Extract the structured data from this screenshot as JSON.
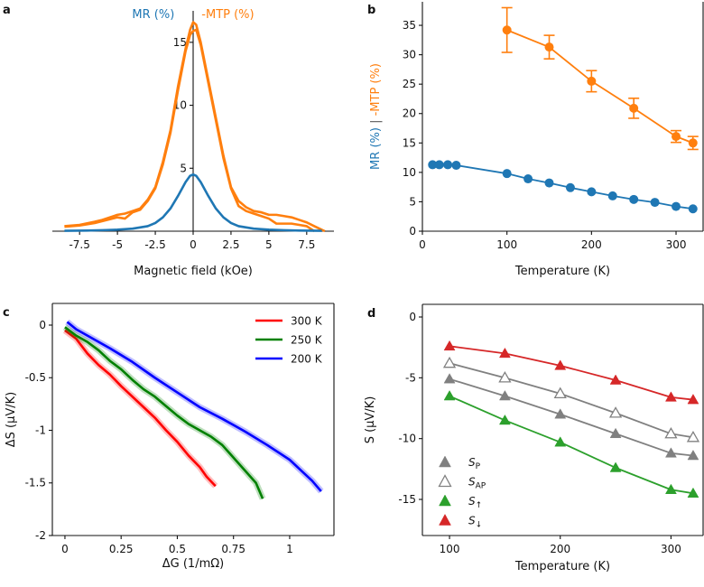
{
  "chart_data": [
    {
      "panel": "a",
      "type": "line",
      "xlabel": "Magnetic field (kOe)",
      "ylabel_parts": [
        {
          "text": "MR (%)",
          "color": "#1f77b4"
        },
        {
          "text": "-MTP (%)",
          "color": "#ff7f0e"
        }
      ],
      "xlim": [
        -9.3,
        9.3
      ],
      "ylim": [
        0,
        17.5
      ],
      "xticks": [
        "-7.5",
        "-5",
        "-2.5",
        "0",
        "2.5",
        "5",
        "7.5"
      ],
      "yticks": [
        "5",
        "10",
        "15"
      ],
      "grid": false,
      "series": [
        {
          "color": "#ff7f0e",
          "x": [
            -8.5,
            -7.5,
            -6.5,
            -6,
            -5,
            -4.5,
            -4,
            -3.5,
            -3,
            -2.5,
            -2,
            -1.5,
            -1,
            -0.5,
            -0.2,
            0,
            0.2,
            0.5,
            1,
            1.5,
            2,
            2.5,
            3,
            3.5,
            4,
            4.5,
            5,
            5.5,
            6,
            6.5,
            7,
            7.5,
            8,
            8.7
          ],
          "y": [
            0.4,
            0.5,
            0.75,
            0.9,
            1.3,
            1.4,
            1.6,
            1.8,
            2.5,
            3.5,
            5.5,
            8,
            11.5,
            14.5,
            16,
            16.6,
            16.4,
            15,
            12,
            9,
            6,
            3.5,
            2.4,
            1.9,
            1.6,
            1.5,
            1.3,
            1.3,
            1.2,
            1.1,
            0.9,
            0.7,
            0.4,
            0
          ]
        },
        {
          "color": "#ff7f0e",
          "x": [
            -8.5,
            -7.5,
            -6.5,
            -6,
            -5,
            -4.5,
            -4,
            -3.5,
            -3,
            -2.5,
            -2,
            -1.5,
            -1,
            -0.5,
            -0.2,
            0,
            0.2,
            0.5,
            1,
            1.5,
            2,
            2.5,
            3,
            3.5,
            4,
            4.5,
            5,
            5.5,
            6,
            6.5,
            7,
            7.5,
            8
          ],
          "y": [
            0.35,
            0.45,
            0.65,
            0.8,
            1.1,
            1.0,
            1.5,
            1.7,
            2.4,
            3.4,
            5.3,
            7.8,
            11.2,
            14.3,
            15.6,
            15.9,
            16.0,
            14.8,
            11.8,
            8.8,
            5.8,
            3.4,
            2.0,
            1.6,
            1.4,
            1.2,
            1.0,
            0.6,
            0.6,
            0.6,
            0.5,
            0.4,
            0
          ]
        },
        {
          "color": "#1f77b4",
          "x": [
            -8.5,
            -7,
            -6,
            -5,
            -4,
            -3,
            -2.5,
            -2,
            -1.5,
            -1,
            -0.5,
            -0.2,
            0,
            0.2,
            0.5,
            1,
            1.5,
            2,
            2.5,
            3,
            4,
            5,
            6,
            7,
            8.5
          ],
          "y": [
            0.03,
            0.05,
            0.08,
            0.12,
            0.2,
            0.4,
            0.65,
            1.1,
            1.8,
            2.8,
            3.9,
            4.4,
            4.5,
            4.4,
            3.9,
            2.8,
            1.8,
            1.1,
            0.65,
            0.4,
            0.2,
            0.12,
            0.08,
            0.05,
            0.03
          ]
        }
      ]
    },
    {
      "panel": "b",
      "type": "line",
      "xlabel": "Temperature (K)",
      "ylabel_parts": [
        {
          "text": "MR (%)",
          "color": "#1f77b4"
        },
        {
          "text": " | ",
          "color": "#555555"
        },
        {
          "text": "-MTP (%)",
          "color": "#ff7f0e"
        }
      ],
      "xlim": [
        0,
        332
      ],
      "ylim": [
        0,
        39
      ],
      "xticks": [
        "0",
        "100",
        "200",
        "300"
      ],
      "yticks": [
        "0",
        "5",
        "10",
        "15",
        "20",
        "25",
        "30",
        "35"
      ],
      "grid": false,
      "series": [
        {
          "color": "#1f77b4",
          "marker": "circle",
          "x": [
            12,
            20,
            30,
            40,
            100,
            125,
            150,
            175,
            200,
            225,
            250,
            275,
            300,
            320
          ],
          "y": [
            11.3,
            11.3,
            11.3,
            11.2,
            9.8,
            8.9,
            8.2,
            7.4,
            6.7,
            6.0,
            5.4,
            4.9,
            4.2,
            3.8
          ]
        },
        {
          "color": "#ff7f0e",
          "marker": "circle",
          "x": [
            100,
            150,
            200,
            250,
            300,
            320
          ],
          "y": [
            34.2,
            31.3,
            25.5,
            20.9,
            16.1,
            15.0
          ],
          "yerr": [
            3.8,
            2.0,
            1.8,
            1.7,
            1.0,
            1.1
          ]
        }
      ]
    },
    {
      "panel": "c",
      "type": "line",
      "xlabel": "ΔG (1/mΩ)",
      "ylabel": "ΔS (μV/K)",
      "xlim": [
        -0.056,
        1.197
      ],
      "ylim": [
        -2,
        0.206
      ],
      "xticks": [
        "0",
        "0.25",
        "0.5",
        "0.75",
        "1"
      ],
      "yticks": [
        "0",
        "-0.5",
        "-1",
        "-1.5",
        "-2"
      ],
      "grid": false,
      "legend": "top-right",
      "series": [
        {
          "name": "300 K",
          "color": "#ff0000",
          "x": [
            0,
            0.05,
            0.1,
            0.15,
            0.2,
            0.25,
            0.3,
            0.35,
            0.4,
            0.45,
            0.5,
            0.55,
            0.6,
            0.63,
            0.67
          ],
          "y": [
            -0.05,
            -0.13,
            -0.27,
            -0.38,
            -0.47,
            -0.58,
            -0.68,
            -0.78,
            -0.88,
            -1.0,
            -1.11,
            -1.24,
            -1.35,
            -1.44,
            -1.53
          ]
        },
        {
          "name": "250 K",
          "color": "#008000",
          "x": [
            0,
            0.05,
            0.1,
            0.15,
            0.2,
            0.25,
            0.3,
            0.35,
            0.4,
            0.45,
            0.5,
            0.55,
            0.6,
            0.65,
            0.7,
            0.75,
            0.8,
            0.85,
            0.88
          ],
          "y": [
            -0.02,
            -0.1,
            -0.16,
            -0.24,
            -0.34,
            -0.42,
            -0.52,
            -0.61,
            -0.68,
            -0.77,
            -0.86,
            -0.94,
            -1.0,
            -1.06,
            -1.14,
            -1.26,
            -1.38,
            -1.5,
            -1.65
          ]
        },
        {
          "name": "200 K",
          "color": "#0000ff",
          "x": [
            0.01,
            0.05,
            0.1,
            0.2,
            0.3,
            0.4,
            0.5,
            0.6,
            0.7,
            0.8,
            0.9,
            1.0,
            1.05,
            1.1,
            1.14
          ],
          "y": [
            0.03,
            -0.04,
            -0.1,
            -0.22,
            -0.35,
            -0.5,
            -0.64,
            -0.78,
            -0.89,
            -1.01,
            -1.14,
            -1.28,
            -1.38,
            -1.48,
            -1.58
          ]
        }
      ]
    },
    {
      "panel": "d",
      "type": "line",
      "xlabel": "Temperature (K)",
      "ylabel": "S (μV/K)",
      "xlim": [
        75.5,
        329
      ],
      "ylim": [
        -17.97,
        1.04
      ],
      "xticks": [
        "100",
        "200",
        "300"
      ],
      "yticks": [
        "0",
        "-5",
        "-10",
        "-15"
      ],
      "grid": false,
      "legend": "bottom-left",
      "series": [
        {
          "name_symbol": "S",
          "name_sub": "P",
          "color": "#808080",
          "marker": "triangle-filled",
          "x": [
            100,
            150,
            200,
            250,
            300,
            320
          ],
          "y": [
            -5.1,
            -6.5,
            -8.0,
            -9.6,
            -11.2,
            -11.4
          ]
        },
        {
          "name_symbol": "S",
          "name_sub": "AP",
          "color": "#808080",
          "marker": "triangle-open",
          "x": [
            100,
            150,
            200,
            250,
            300,
            320
          ],
          "y": [
            -3.8,
            -5.0,
            -6.3,
            -7.9,
            -9.6,
            -9.9
          ]
        },
        {
          "name_symbol": "S",
          "name_sub": "↑",
          "color": "#2ca02c",
          "marker": "triangle-filled",
          "x": [
            100,
            150,
            200,
            250,
            300,
            320
          ],
          "y": [
            -6.5,
            -8.5,
            -10.3,
            -12.4,
            -14.2,
            -14.5
          ]
        },
        {
          "name_symbol": "S",
          "name_sub": "↓",
          "color": "#d62728",
          "marker": "triangle-filled",
          "x": [
            100,
            150,
            200,
            250,
            300,
            320
          ],
          "y": [
            -2.4,
            -3.0,
            -4.0,
            -5.2,
            -6.6,
            -6.8
          ]
        }
      ]
    }
  ]
}
